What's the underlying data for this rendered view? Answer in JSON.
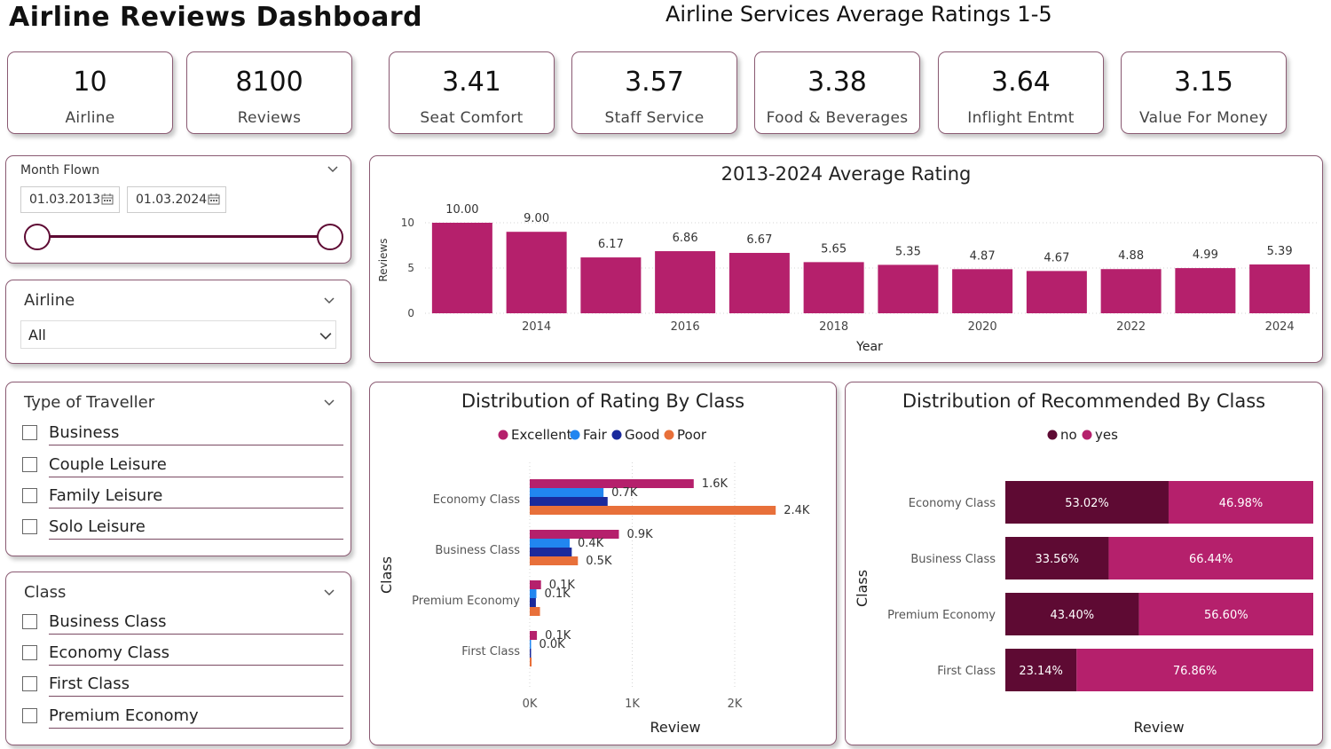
{
  "header": {
    "title": "Airline Reviews Dashboard",
    "services_title": "Airline Services Average Ratings 1-5"
  },
  "kpis": [
    {
      "value": "10",
      "label": "Airline"
    },
    {
      "value": "8100",
      "label": "Reviews"
    },
    {
      "value": "3.41",
      "label": "Seat Comfort"
    },
    {
      "value": "3.57",
      "label": "Staff Service"
    },
    {
      "value": "3.38",
      "label": "Food & Beverages"
    },
    {
      "value": "3.64",
      "label": "Inflight Entmt"
    },
    {
      "value": "3.15",
      "label": "Value For Money"
    }
  ],
  "month_slicer": {
    "title": "Month Flown",
    "start": "01.03.2013",
    "end": "01.03.2024"
  },
  "airline_slicer": {
    "title": "Airline",
    "selected": "All"
  },
  "traveller_slicer": {
    "title": "Type of Traveller",
    "options": [
      "Business",
      "Couple Leisure",
      "Family Leisure",
      "Solo Leisure"
    ]
  },
  "class_slicer": {
    "title": "Class",
    "options": [
      "Business Class",
      "Economy Class",
      "First Class",
      "Premium Economy"
    ]
  },
  "colors": {
    "accent": "#b5206c",
    "dark": "#5e0a33",
    "fair": "#2186f0",
    "good": "#1a2a9c",
    "poor": "#e8703a"
  },
  "chart_data": [
    {
      "type": "bar",
      "title": "2013-2024 Average Rating",
      "xlabel": "Year",
      "ylabel": "Reviews",
      "x": [
        2013,
        2014,
        2015,
        2016,
        2017,
        2018,
        2019,
        2020,
        2021,
        2022,
        2023,
        2024
      ],
      "x_tick_labels": [
        "2014",
        "2016",
        "2018",
        "2020",
        "2022",
        "2024"
      ],
      "values": [
        10.0,
        9.0,
        6.17,
        6.86,
        6.67,
        5.65,
        5.35,
        4.87,
        4.67,
        4.88,
        4.99,
        5.39
      ],
      "data_labels": [
        "10.00",
        "9.00",
        "6.17",
        "6.86",
        "6.67",
        "5.65",
        "5.35",
        "4.87",
        "4.67",
        "4.88",
        "4.99",
        "5.39"
      ],
      "y_ticks": [
        "0",
        "5",
        "10"
      ],
      "ylim": [
        0,
        10
      ],
      "grid": true
    },
    {
      "type": "bar",
      "orientation": "horizontal",
      "title": "Distribution of Rating By Class",
      "xlabel": "Review",
      "ylabel": "Class",
      "legend": [
        "Excellent",
        "Fair",
        "Good",
        "Poor"
      ],
      "legend_position": "top",
      "categories": [
        "Economy Class",
        "Business Class",
        "Premium Economy",
        "First Class"
      ],
      "series": [
        {
          "name": "Excellent",
          "values": [
            1600,
            870,
            110,
            70
          ],
          "labels": [
            "1.6K",
            "0.9K",
            "0.1K",
            "0.1K"
          ]
        },
        {
          "name": "Fair",
          "values": [
            720,
            390,
            65,
            12
          ],
          "labels": [
            "0.7K",
            "0.4K",
            "0.1K",
            "0.0K"
          ]
        },
        {
          "name": "Good",
          "values": [
            760,
            410,
            60,
            10
          ],
          "labels": [
            "",
            "",
            "",
            ""
          ]
        },
        {
          "name": "Poor",
          "values": [
            2400,
            470,
            100,
            18
          ],
          "labels": [
            "2.4K",
            "0.5K",
            "",
            ""
          ]
        }
      ],
      "x_ticks": [
        "0K",
        "1K",
        "2K"
      ],
      "xlim": [
        0,
        2500
      ]
    },
    {
      "type": "bar",
      "orientation": "horizontal",
      "stacked": "100%",
      "title": "Distribution of Recommended By Class",
      "xlabel": "Review",
      "ylabel": "Class",
      "legend": [
        "no",
        "yes"
      ],
      "legend_position": "top",
      "categories": [
        "Economy Class",
        "Business Class",
        "Premium Economy",
        "First Class"
      ],
      "series": [
        {
          "name": "no",
          "values": [
            53.02,
            33.56,
            43.4,
            23.14
          ],
          "labels": [
            "53.02%",
            "33.56%",
            "43.40%",
            "23.14%"
          ]
        },
        {
          "name": "yes",
          "values": [
            46.98,
            66.44,
            56.6,
            76.86
          ],
          "labels": [
            "46.98%",
            "66.44%",
            "56.60%",
            "76.86%"
          ]
        }
      ]
    }
  ]
}
